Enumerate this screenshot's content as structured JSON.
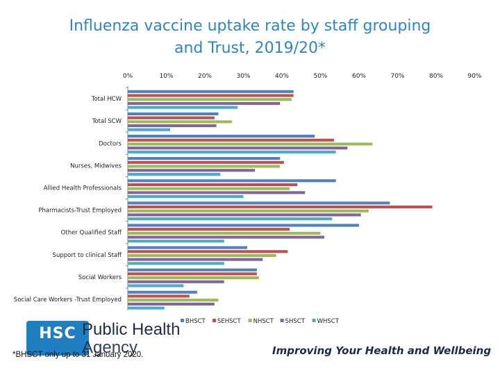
{
  "title_line1": "Influenza vaccine uptake rate by staff grouping",
  "title_line2": "and Trust, 2019/20*",
  "logo": {
    "text": "HSC",
    "org_line1": "Public Health",
    "org_line2": "Agency"
  },
  "footnote": "*BHSCT only up to 31 January 2020.",
  "tagline": "Improving Your Health and Wellbeing",
  "colors": {
    "BHSCT": "#4f81bd",
    "SEHSCT": "#c0504d",
    "NHSCT": "#9bbb59",
    "SHSCT": "#8064a2",
    "WHSCT": "#4bacc6",
    "title": "#2e86c1",
    "logo": "#1f7fc0"
  },
  "chart_data": {
    "type": "bar",
    "orientation": "horizontal",
    "title": "Influenza vaccine uptake rate by staff grouping and Trust, 2019/20*",
    "categories": [
      "Total HCW",
      "Total SCW",
      "Doctors",
      "Nurses, Midwives",
      "Allied Health Professionals",
      "Pharmacists-Trust Employed",
      "Other Qualified Staff",
      "Support to clinical Staff",
      "Social Workers",
      "Social Care Workers -Trust Employed"
    ],
    "series": [
      {
        "name": "BHSCT",
        "values": [
          43,
          23.5,
          48.5,
          39.5,
          54,
          68,
          60,
          31,
          33.5,
          18
        ]
      },
      {
        "name": "SEHSCT",
        "values": [
          43,
          22.5,
          53.5,
          40.5,
          44,
          79,
          42,
          41.5,
          33.5,
          16
        ]
      },
      {
        "name": "NHSCT",
        "values": [
          42.5,
          27,
          63.5,
          39.5,
          42,
          62.5,
          50,
          38.5,
          34,
          23.5
        ]
      },
      {
        "name": "SHSCT",
        "values": [
          39.5,
          23,
          57,
          33,
          46,
          60.5,
          51,
          35,
          25,
          22.5
        ]
      },
      {
        "name": "WHSCT",
        "values": [
          28.5,
          11,
          54,
          24,
          30,
          53,
          25,
          25,
          14.5,
          9.5
        ]
      }
    ],
    "xticks": [
      "0%",
      "10%",
      "20%",
      "30%",
      "40%",
      "50%",
      "60%",
      "70%",
      "80%",
      "90%"
    ],
    "xlim": [
      0,
      90
    ],
    "legend": "bottom",
    "grid": false
  }
}
